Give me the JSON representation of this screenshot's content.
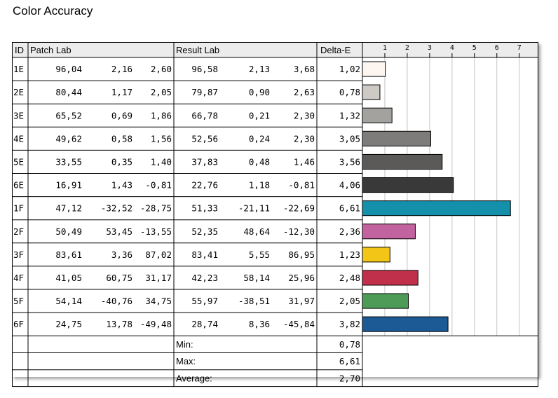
{
  "title": "Color Accuracy",
  "headers": {
    "id": "ID",
    "patch": "Patch Lab",
    "result": "Result Lab",
    "delta": "Delta-E"
  },
  "footer": [
    {
      "label": "Min:",
      "value": "0,78"
    },
    {
      "label": "Max:",
      "value": "6,61"
    },
    {
      "label": "Average:",
      "value": "2,70"
    }
  ],
  "chart_data": {
    "type": "bar",
    "orientation": "horizontal",
    "title": "Color Accuracy",
    "xlim": [
      0,
      7.5
    ],
    "ticks": [
      1,
      2,
      3,
      4,
      5,
      6,
      7
    ],
    "grid": true,
    "rows": [
      {
        "id": "1E",
        "patch": [
          "96,04",
          "2,16",
          "2,60"
        ],
        "result": [
          "96,58",
          "2,13",
          "3,68"
        ],
        "delta": "1,02",
        "value": 1.02,
        "color": "#fdf5f0"
      },
      {
        "id": "2E",
        "patch": [
          "80,44",
          "1,17",
          "2,05"
        ],
        "result": [
          "79,87",
          "0,90",
          "2,63"
        ],
        "delta": "0,78",
        "value": 0.78,
        "color": "#cdcac6"
      },
      {
        "id": "3E",
        "patch": [
          "65,52",
          "0,69",
          "1,86"
        ],
        "result": [
          "66,78",
          "0,21",
          "2,30"
        ],
        "delta": "1,32",
        "value": 1.32,
        "color": "#a4a29f"
      },
      {
        "id": "4E",
        "patch": [
          "49,62",
          "0,58",
          "1,56"
        ],
        "result": [
          "52,56",
          "0,24",
          "2,30"
        ],
        "delta": "3,05",
        "value": 3.05,
        "color": "#7e7c7a"
      },
      {
        "id": "5E",
        "patch": [
          "33,55",
          "0,35",
          "1,40"
        ],
        "result": [
          "37,83",
          "0,48",
          "1,46"
        ],
        "delta": "3,56",
        "value": 3.56,
        "color": "#5b5a58"
      },
      {
        "id": "6E",
        "patch": [
          "16,91",
          "1,43",
          "-0,81"
        ],
        "result": [
          "22,76",
          "1,18",
          "-0,81"
        ],
        "delta": "4,06",
        "value": 4.06,
        "color": "#3a3939"
      },
      {
        "id": "1F",
        "patch": [
          "47,12",
          "-32,52",
          "-28,75"
        ],
        "result": [
          "51,33",
          "-21,11",
          "-22,69"
        ],
        "delta": "6,61",
        "value": 6.61,
        "color": "#1590aa"
      },
      {
        "id": "2F",
        "patch": [
          "50,49",
          "53,45",
          "-13,55"
        ],
        "result": [
          "52,35",
          "48,64",
          "-12,30"
        ],
        "delta": "2,36",
        "value": 2.36,
        "color": "#c2629f"
      },
      {
        "id": "3F",
        "patch": [
          "83,61",
          "3,36",
          "87,02"
        ],
        "result": [
          "83,41",
          "5,55",
          "86,95"
        ],
        "delta": "1,23",
        "value": 1.23,
        "color": "#f2c516"
      },
      {
        "id": "4F",
        "patch": [
          "41,05",
          "60,75",
          "31,17"
        ],
        "result": [
          "42,23",
          "58,14",
          "25,96"
        ],
        "delta": "2,48",
        "value": 2.48,
        "color": "#c1304a"
      },
      {
        "id": "5F",
        "patch": [
          "54,14",
          "-40,76",
          "34,75"
        ],
        "result": [
          "55,97",
          "-38,51",
          "31,97"
        ],
        "delta": "2,05",
        "value": 2.05,
        "color": "#4d9b57"
      },
      {
        "id": "6F",
        "patch": [
          "24,75",
          "13,78",
          "-49,48"
        ],
        "result": [
          "28,74",
          "8,36",
          "-45,84"
        ],
        "delta": "3,82",
        "value": 3.82,
        "color": "#1c5a96"
      }
    ]
  }
}
